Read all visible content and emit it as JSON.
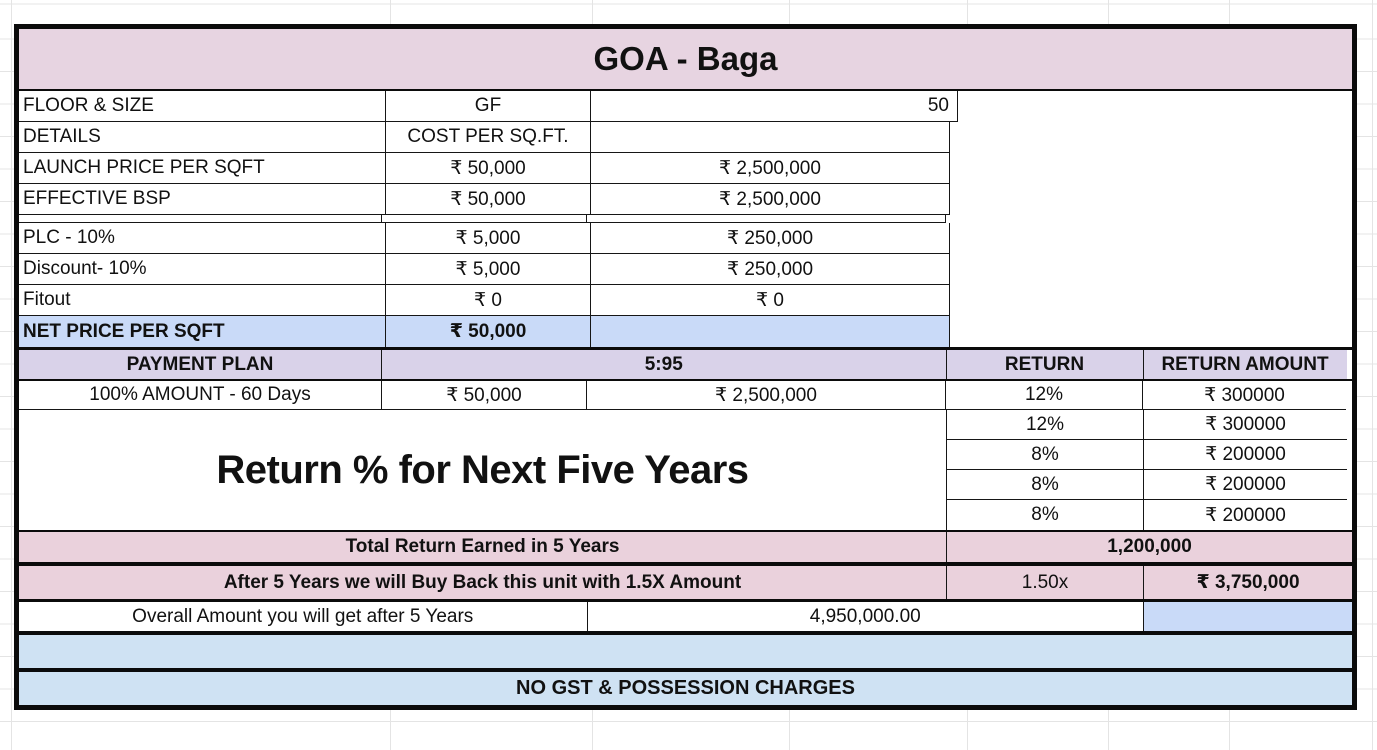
{
  "title": "GOA - Baga",
  "colors": {
    "header_pink": "#e7d4e1",
    "section_pink": "#ead1dc",
    "plan_lavender": "#d9d2e9",
    "highlight_blue": "#c9daf8",
    "footer_blue": "#cfe2f3"
  },
  "table": {
    "info_rows": [
      {
        "label": "FLOOR & SIZE",
        "value1": "GF",
        "value2": "50"
      },
      {
        "label": "DETAILS",
        "value1": "COST PER SQ.FT.",
        "value2": ""
      },
      {
        "label": "LAUNCH PRICE PER SQFT",
        "value1": "₹ 50,000",
        "value2": "₹ 2,500,000"
      },
      {
        "label": "EFFECTIVE BSP",
        "value1": "₹ 50,000",
        "value2": "₹ 2,500,000"
      },
      {
        "label": "PLC - 10%",
        "value1": "₹ 5,000",
        "value2": "₹ 250,000"
      },
      {
        "label": "Discount- 10%",
        "value1": "₹ 5,000",
        "value2": "₹ 250,000"
      },
      {
        "label": "Fitout",
        "value1": "₹ 0",
        "value2": "₹ 0"
      },
      {
        "label": "NET PRICE PER SQFT",
        "value1": "₹ 50,000",
        "value2": ""
      }
    ],
    "payment_plan_header": {
      "label": "PAYMENT PLAN",
      "ratio": "5:95",
      "return_header": "RETURN",
      "return_amount_header": "RETURN AMOUNT"
    },
    "payment_row": {
      "label": "100% AMOUNT - 60 Days",
      "value1": "₹ 50,000",
      "value2": "₹ 2,500,000"
    },
    "returns": [
      {
        "percent": "12%",
        "amount": "₹ 300000"
      },
      {
        "percent": "12%",
        "amount": "₹ 300000"
      },
      {
        "percent": "8%",
        "amount": "₹ 200000"
      },
      {
        "percent": "8%",
        "amount": "₹ 200000"
      },
      {
        "percent": "8%",
        "amount": "₹ 200000"
      }
    ],
    "returns_banner": "Return % for Next Five Years",
    "total_return": {
      "label": "Total Return Earned in 5 Years",
      "value": "1,200,000"
    },
    "buyback": {
      "label": "After 5 Years we will Buy Back this unit with 1.5X Amount",
      "multiplier": "1.50x",
      "amount": "₹ 3,750,000"
    },
    "overall": {
      "label": "Overall Amount you will get after 5 Years",
      "value": "4,950,000.00"
    },
    "footer_note": "NO GST & POSSESSION CHARGES"
  }
}
